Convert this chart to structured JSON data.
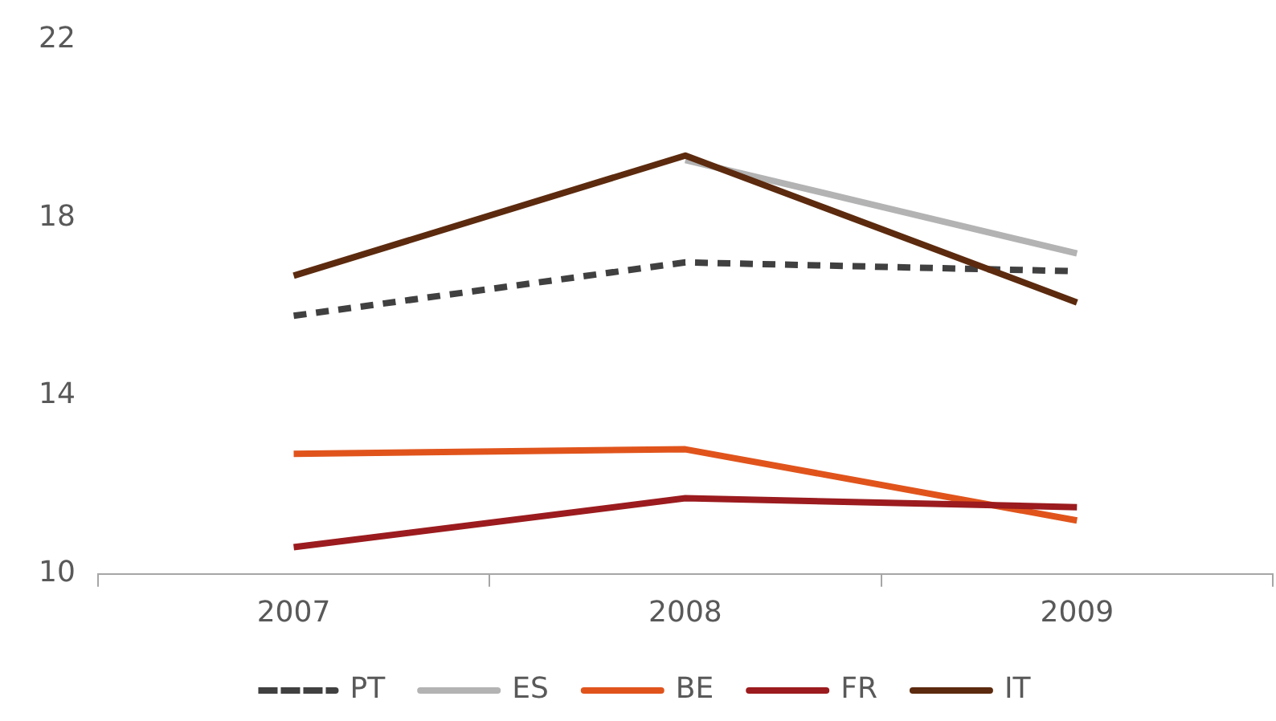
{
  "chart_data": {
    "type": "line",
    "categories": [
      "2007",
      "2008",
      "2009"
    ],
    "series": [
      {
        "name": "PT",
        "color": "#404040",
        "line_style": "dashed",
        "values": [
          15.8,
          17.0,
          16.8
        ]
      },
      {
        "name": "ES",
        "color": "#b3b3b3",
        "line_style": "solid",
        "values": [
          null,
          19.3,
          17.2
        ]
      },
      {
        "name": "BE",
        "color": "#e0541c",
        "line_style": "solid",
        "values": [
          12.7,
          12.8,
          11.2
        ]
      },
      {
        "name": "FR",
        "color": "#9b1b1e",
        "line_style": "solid",
        "values": [
          10.6,
          11.7,
          11.5
        ]
      },
      {
        "name": "IT",
        "color": "#5c2a0e",
        "line_style": "solid",
        "values": [
          16.7,
          19.4,
          16.1
        ]
      }
    ],
    "ylim": [
      10,
      22
    ],
    "yticks": [
      10,
      14,
      18,
      22
    ],
    "grid": false,
    "legend": "bottom",
    "marker": "none"
  }
}
